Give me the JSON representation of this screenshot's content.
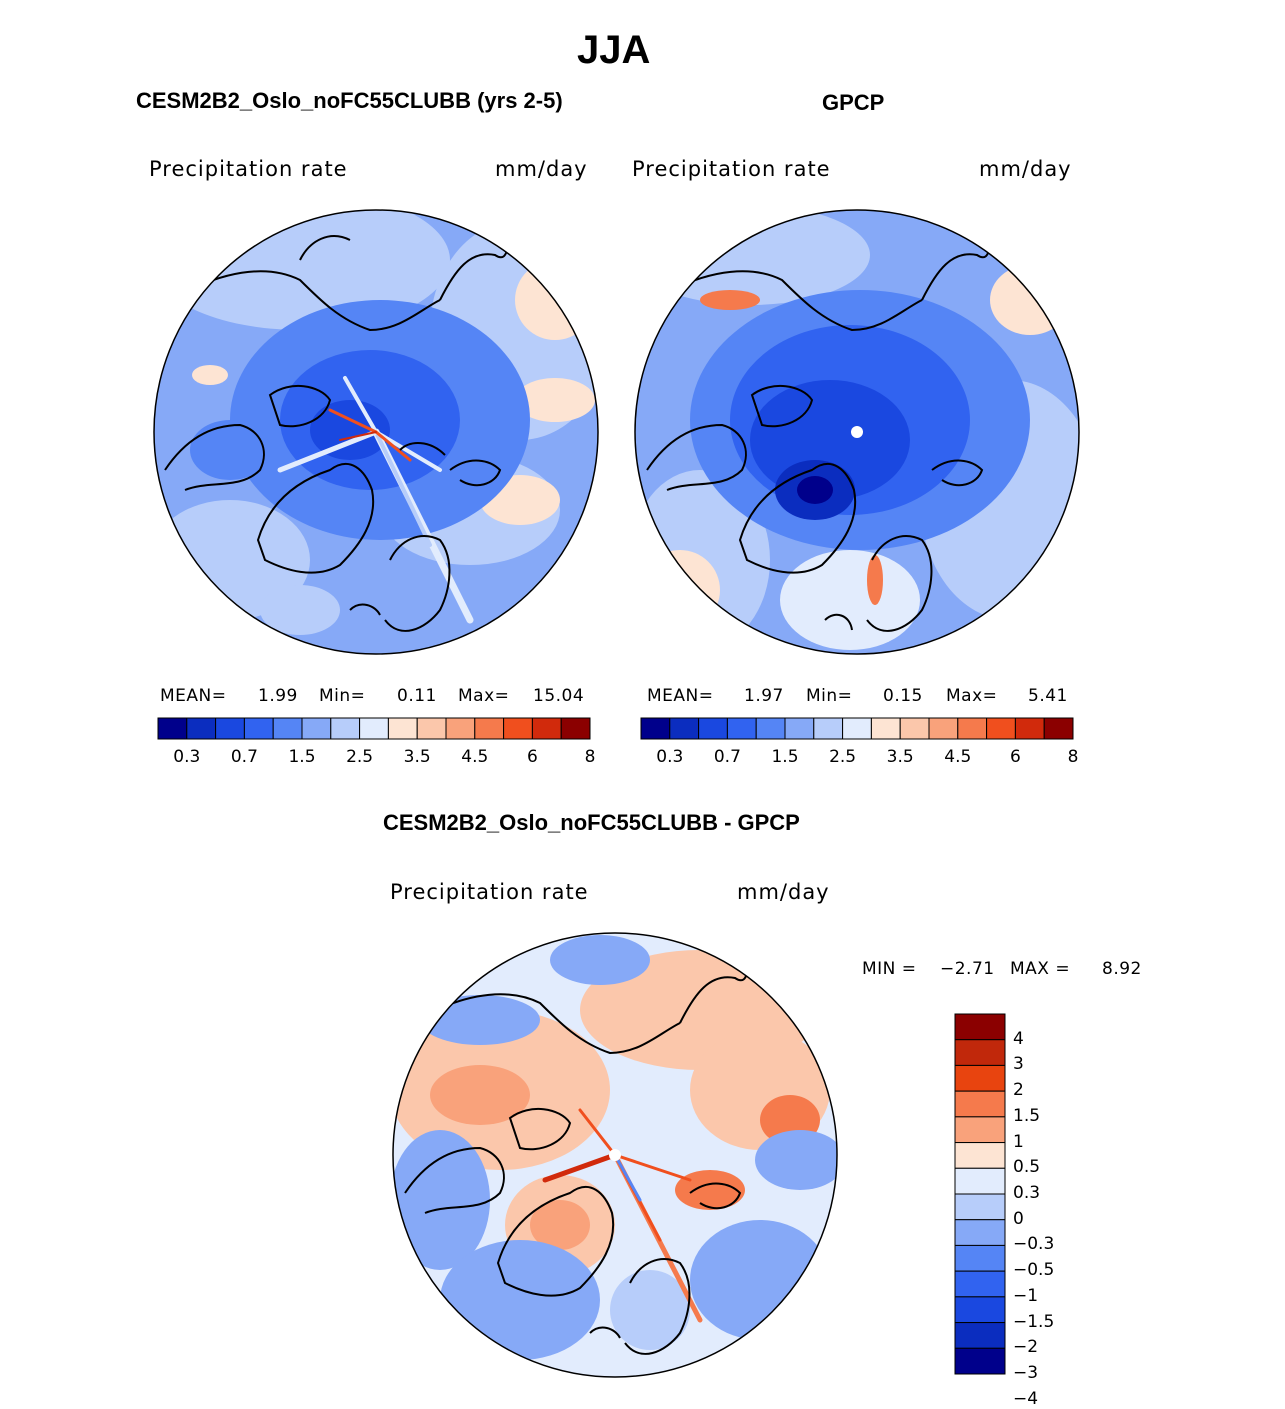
{
  "figure_title": "JJA",
  "colors": {
    "abs_scale": [
      "#00008b",
      "#0b2dbf",
      "#1a48e0",
      "#3163f0",
      "#5585f5",
      "#86a9f7",
      "#b7cdfa",
      "#e2ecfd",
      "#fde4d3",
      "#fbc7ab",
      "#f9a27b",
      "#f57a4c",
      "#f04f1e",
      "#d12a0c",
      "#8b0000"
    ],
    "diff_scale": [
      "#8b0000",
      "#c1280b",
      "#e8440f",
      "#f57a4c",
      "#f9a27b",
      "#fde4d3",
      "#e2ecfd",
      "#b7cdfa",
      "#86a9f7",
      "#5585f5",
      "#3163f0",
      "#1a48e0",
      "#0b2dbf",
      "#00008b"
    ],
    "land_outline": "#000000"
  },
  "panels": {
    "model": {
      "header": "CESM2B2_Oslo_noFC55CLUBB (yrs 2-5)",
      "variable": "Precipitation rate",
      "units": "mm/day",
      "mean_label": "MEAN=",
      "mean_value": "1.99",
      "min_label": "Min=",
      "min_value": "0.11",
      "max_label": "Max=",
      "max_value": "15.04",
      "colorbar_ticks": [
        "0.3",
        "0.7",
        "1.5",
        "2.5",
        "3.5",
        "4.5",
        "6",
        "8"
      ]
    },
    "obs": {
      "header": "GPCP",
      "variable": "Precipitation rate",
      "units": "mm/day",
      "mean_label": "MEAN=",
      "mean_value": "1.97",
      "min_label": "Min=",
      "min_value": "0.15",
      "max_label": "Max=",
      "max_value": "5.41",
      "colorbar_ticks": [
        "0.3",
        "0.7",
        "1.5",
        "2.5",
        "3.5",
        "4.5",
        "6",
        "8"
      ]
    },
    "diff": {
      "header": "CESM2B2_Oslo_noFC55CLUBB - GPCP",
      "variable": "Precipitation rate",
      "units": "mm/day",
      "min_label": "MIN =",
      "min_value": "−2.71",
      "max_label": "MAX =",
      "max_value": "8.92",
      "colorbar_ticks": [
        "4",
        "3",
        "2",
        "1.5",
        "1",
        "0.5",
        "0.3",
        "0",
        "−0.3",
        "−0.5",
        "−1",
        "−1.5",
        "−2",
        "−3",
        "−4"
      ]
    }
  }
}
